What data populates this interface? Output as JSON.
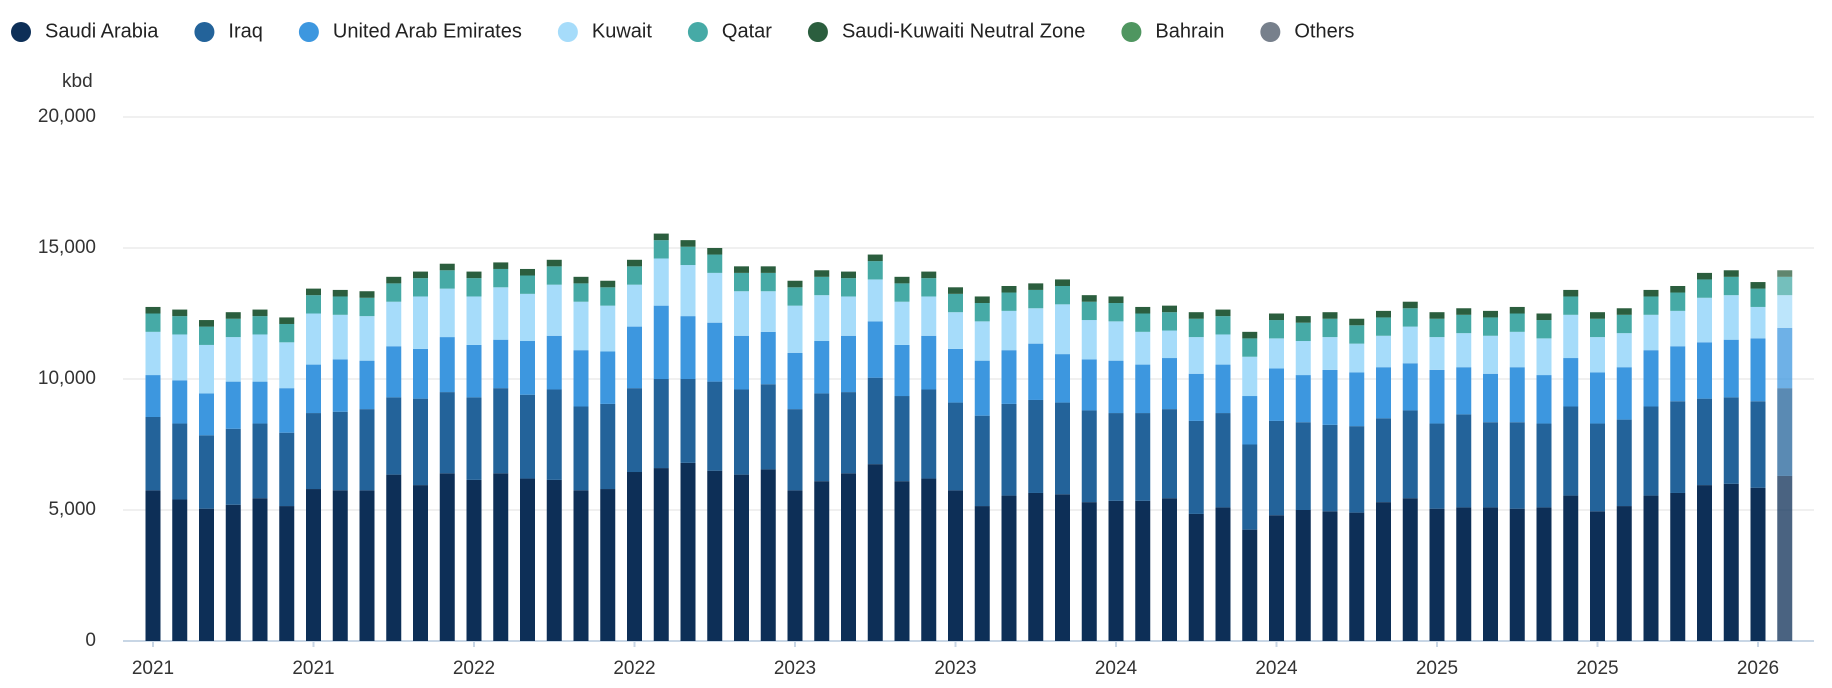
{
  "chart_data": {
    "type": "stacked_bar",
    "y_label": "kbd",
    "ylim": [
      0,
      20000
    ],
    "yticks": [
      0,
      {
        "value": 5000,
        "label": "5,000"
      },
      {
        "value": 10000,
        "label": "10,000"
      },
      {
        "value": 15000,
        "label": "15,000"
      },
      {
        "value": 20000,
        "label": "20,000"
      }
    ],
    "grid": true,
    "legend": "top-left",
    "categories": [
      "2021",
      null,
      null,
      null,
      null,
      null,
      "2021",
      null,
      null,
      null,
      null,
      null,
      "2022",
      null,
      null,
      null,
      null,
      null,
      "2022",
      null,
      null,
      null,
      null,
      null,
      "2023",
      null,
      null,
      null,
      null,
      null,
      "2023",
      null,
      null,
      null,
      null,
      null,
      "2024",
      null,
      null,
      null,
      null,
      null,
      "2024",
      null,
      null,
      null,
      null,
      null,
      "2025",
      null,
      null,
      null,
      null,
      null,
      "2025",
      null,
      null,
      null,
      null,
      null,
      "2026",
      null
    ],
    "series": [
      {
        "name": "Saudi Arabia",
        "color": "#0d2f57",
        "values": [
          5750,
          5400,
          5050,
          5200,
          5450,
          5150,
          5800,
          5750,
          5750,
          6350,
          5950,
          6400,
          6150,
          6400,
          6200,
          6150,
          5750,
          5800,
          6450,
          6600,
          6800,
          6500,
          6350,
          6550,
          5750,
          6100,
          6400,
          6750,
          6100,
          6200,
          5750,
          5150,
          5550,
          5650,
          5600,
          5300,
          5350,
          5350,
          5450,
          4850,
          5100,
          4250,
          4800,
          5000,
          4950,
          4900,
          5300,
          5450,
          5050,
          5100,
          5100,
          5050,
          5100,
          5550,
          4950,
          5150,
          5550,
          5650,
          5950,
          6000,
          5850,
          6300
        ]
      },
      {
        "name": "Iraq",
        "color": "#23639a",
        "values": [
          2800,
          2900,
          2800,
          2900,
          2850,
          2800,
          2900,
          3000,
          3100,
          2950,
          3300,
          3100,
          3150,
          3250,
          3200,
          3450,
          3200,
          3250,
          3200,
          3400,
          3200,
          3400,
          3250,
          3250,
          3100,
          3350,
          3100,
          3300,
          3250,
          3400,
          3350,
          3450,
          3500,
          3550,
          3500,
          3500,
          3350,
          3350,
          3400,
          3550,
          3600,
          3250,
          3600,
          3350,
          3300,
          3300,
          3200,
          3350,
          3250,
          3550,
          3250,
          3300,
          3200,
          3400,
          3350,
          3300,
          3400,
          3500,
          3300,
          3300,
          3300,
          3350
        ]
      },
      {
        "name": "United Arab Emirates",
        "color": "#3d97df",
        "values": [
          1600,
          1650,
          1600,
          1800,
          1600,
          1700,
          1850,
          2000,
          1850,
          1950,
          1900,
          2100,
          2000,
          1850,
          2050,
          2050,
          2150,
          2000,
          2350,
          2800,
          2400,
          2250,
          2050,
          2000,
          2150,
          2000,
          2150,
          2150,
          1950,
          2050,
          2050,
          2100,
          2050,
          2150,
          1850,
          1950,
          2000,
          1850,
          1950,
          1800,
          1850,
          1850,
          2000,
          1800,
          2100,
          2050,
          1950,
          1800,
          2050,
          1800,
          1850,
          2100,
          1850,
          1850,
          1950,
          2000,
          2150,
          2100,
          2150,
          2200,
          2400,
          2300
        ]
      },
      {
        "name": "Kuwait",
        "color": "#a6dcfa",
        "values": [
          1650,
          1750,
          1850,
          1700,
          1800,
          1750,
          1950,
          1700,
          1700,
          1700,
          2000,
          1850,
          1850,
          2000,
          1800,
          1950,
          1850,
          1750,
          1600,
          1800,
          1950,
          1900,
          1700,
          1550,
          1800,
          1750,
          1500,
          1600,
          1650,
          1500,
          1400,
          1500,
          1500,
          1350,
          1900,
          1500,
          1500,
          1250,
          1050,
          1400,
          1150,
          1500,
          1150,
          1300,
          1250,
          1100,
          1200,
          1400,
          1250,
          1300,
          1450,
          1350,
          1400,
          1650,
          1350,
          1300,
          1350,
          1350,
          1700,
          1700,
          1200,
          1250
        ]
      },
      {
        "name": "Qatar",
        "color": "#46aaa6",
        "values": [
          700,
          700,
          700,
          700,
          700,
          700,
          700,
          700,
          700,
          700,
          700,
          700,
          700,
          700,
          700,
          700,
          700,
          700,
          700,
          700,
          700,
          700,
          700,
          700,
          700,
          700,
          700,
          700,
          700,
          700,
          700,
          700,
          700,
          700,
          700,
          700,
          700,
          700,
          700,
          700,
          700,
          700,
          700,
          700,
          700,
          700,
          700,
          700,
          700,
          700,
          700,
          700,
          700,
          700,
          700,
          700,
          700,
          700,
          700,
          700,
          700,
          700
        ]
      },
      {
        "name": "Saudi-Kuwaiti Neutral Zone",
        "color": "#2b5e3e",
        "values": [
          250,
          250,
          250,
          250,
          250,
          250,
          250,
          250,
          250,
          250,
          250,
          250,
          250,
          250,
          250,
          250,
          250,
          250,
          250,
          250,
          250,
          250,
          250,
          250,
          250,
          250,
          250,
          250,
          250,
          250,
          250,
          250,
          250,
          250,
          250,
          250,
          250,
          250,
          250,
          250,
          250,
          250,
          250,
          250,
          250,
          250,
          250,
          250,
          250,
          250,
          250,
          250,
          250,
          250,
          250,
          250,
          250,
          250,
          250,
          250,
          250,
          250
        ]
      },
      {
        "name": "Bahrain",
        "color": "#4f9660",
        "values": [
          0,
          0,
          0,
          0,
          0,
          0,
          0,
          0,
          0,
          0,
          0,
          0,
          0,
          0,
          0,
          0,
          0,
          0,
          0,
          0,
          0,
          0,
          0,
          0,
          0,
          0,
          0,
          0,
          0,
          0,
          0,
          0,
          0,
          0,
          0,
          0,
          0,
          0,
          0,
          0,
          0,
          0,
          0,
          0,
          0,
          0,
          0,
          0,
          0,
          0,
          0,
          0,
          0,
          0,
          0,
          0,
          0,
          0,
          0,
          0,
          0,
          0
        ]
      },
      {
        "name": "Others",
        "color": "#77808c",
        "values": [
          0,
          0,
          0,
          0,
          0,
          0,
          0,
          0,
          0,
          0,
          0,
          0,
          0,
          0,
          0,
          0,
          0,
          0,
          0,
          0,
          0,
          0,
          0,
          0,
          0,
          0,
          0,
          0,
          0,
          0,
          0,
          0,
          0,
          0,
          0,
          0,
          0,
          0,
          0,
          0,
          0,
          0,
          0,
          0,
          0,
          0,
          0,
          0,
          0,
          0,
          0,
          0,
          0,
          0,
          0,
          0,
          0,
          0,
          0,
          0,
          0,
          0
        ]
      }
    ]
  }
}
